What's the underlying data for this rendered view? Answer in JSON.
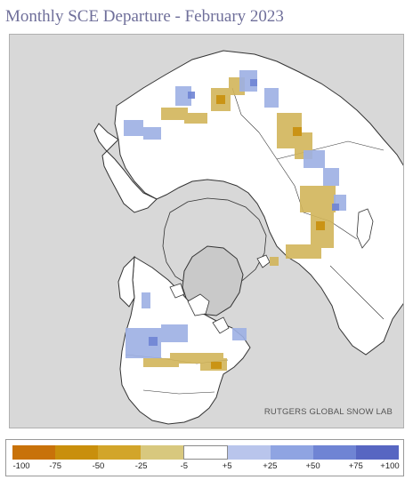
{
  "title": "Monthly SCE Departure - February 2023",
  "credit": "RUTGERS GLOBAL SNOW LAB",
  "legend": {
    "bins": [
      {
        "color": "#c8720a"
      },
      {
        "color": "#c98f0c"
      },
      {
        "color": "#d2a52a"
      },
      {
        "color": "#d8c87e"
      },
      {
        "color": "#ffffff"
      },
      {
        "color": "#b9c5ec"
      },
      {
        "color": "#8fa4e2"
      },
      {
        "color": "#6f84d4"
      },
      {
        "color": "#5766c2"
      }
    ],
    "labels": [
      "-100",
      "-75",
      "-50",
      "-25",
      "-5",
      "+5",
      "+25",
      "+50",
      "+75",
      "+100"
    ]
  },
  "map": {
    "projection": "polar stereographic (north pole centered)",
    "colors": {
      "ocean": "#d8d8d8",
      "land": "#ffffff",
      "greenland": "#c9c9c9",
      "borders": "#333333",
      "deficit": "#d2b55a",
      "surplus": "#9db0e4"
    }
  }
}
